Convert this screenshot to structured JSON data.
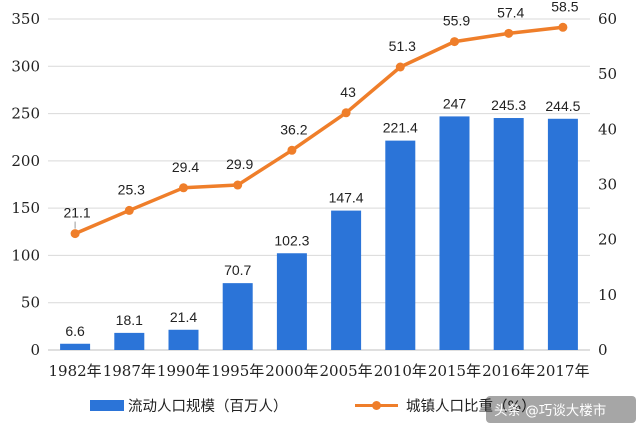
{
  "chart_data": {
    "type": "bar+line",
    "categories": [
      "1982年",
      "1987年",
      "1990年",
      "1995年",
      "2000年",
      "2005年",
      "2010年",
      "2015年",
      "2016年",
      "2017年"
    ],
    "series": [
      {
        "name": "流动人口规模（百万人）",
        "type": "bar",
        "axis": "left",
        "color": "#2b74d8",
        "values": [
          6.6,
          18.1,
          21.4,
          70.7,
          102.3,
          147.4,
          221.4,
          247,
          245.3,
          244.5
        ],
        "labels": [
          "6.6",
          "18.1",
          "21.4",
          "70.7",
          "102.3",
          "147.4",
          "221.4",
          "247",
          "245.3",
          "244.5"
        ]
      },
      {
        "name": "城镇人口比重（%）",
        "type": "line",
        "axis": "right",
        "color": "#ef7e2a",
        "values": [
          21.1,
          25.3,
          29.4,
          29.9,
          36.2,
          43,
          51.3,
          55.9,
          57.4,
          58.5
        ],
        "labels": [
          "21.1",
          "25.3",
          "29.4",
          "29.9",
          "36.2",
          "43",
          "51.3",
          "55.9",
          "57.4",
          "58.5"
        ]
      }
    ],
    "y_left": {
      "range": [
        0,
        350
      ],
      "ticks": [
        "0",
        "50",
        "100",
        "150",
        "200",
        "250",
        "300",
        "350"
      ]
    },
    "y_right": {
      "range": [
        0,
        60
      ],
      "ticks": [
        "0",
        "10",
        "20",
        "30",
        "40",
        "50",
        "60"
      ]
    },
    "grid": true,
    "legend": "bottom"
  },
  "watermark": "头条 @巧谈大楼市"
}
